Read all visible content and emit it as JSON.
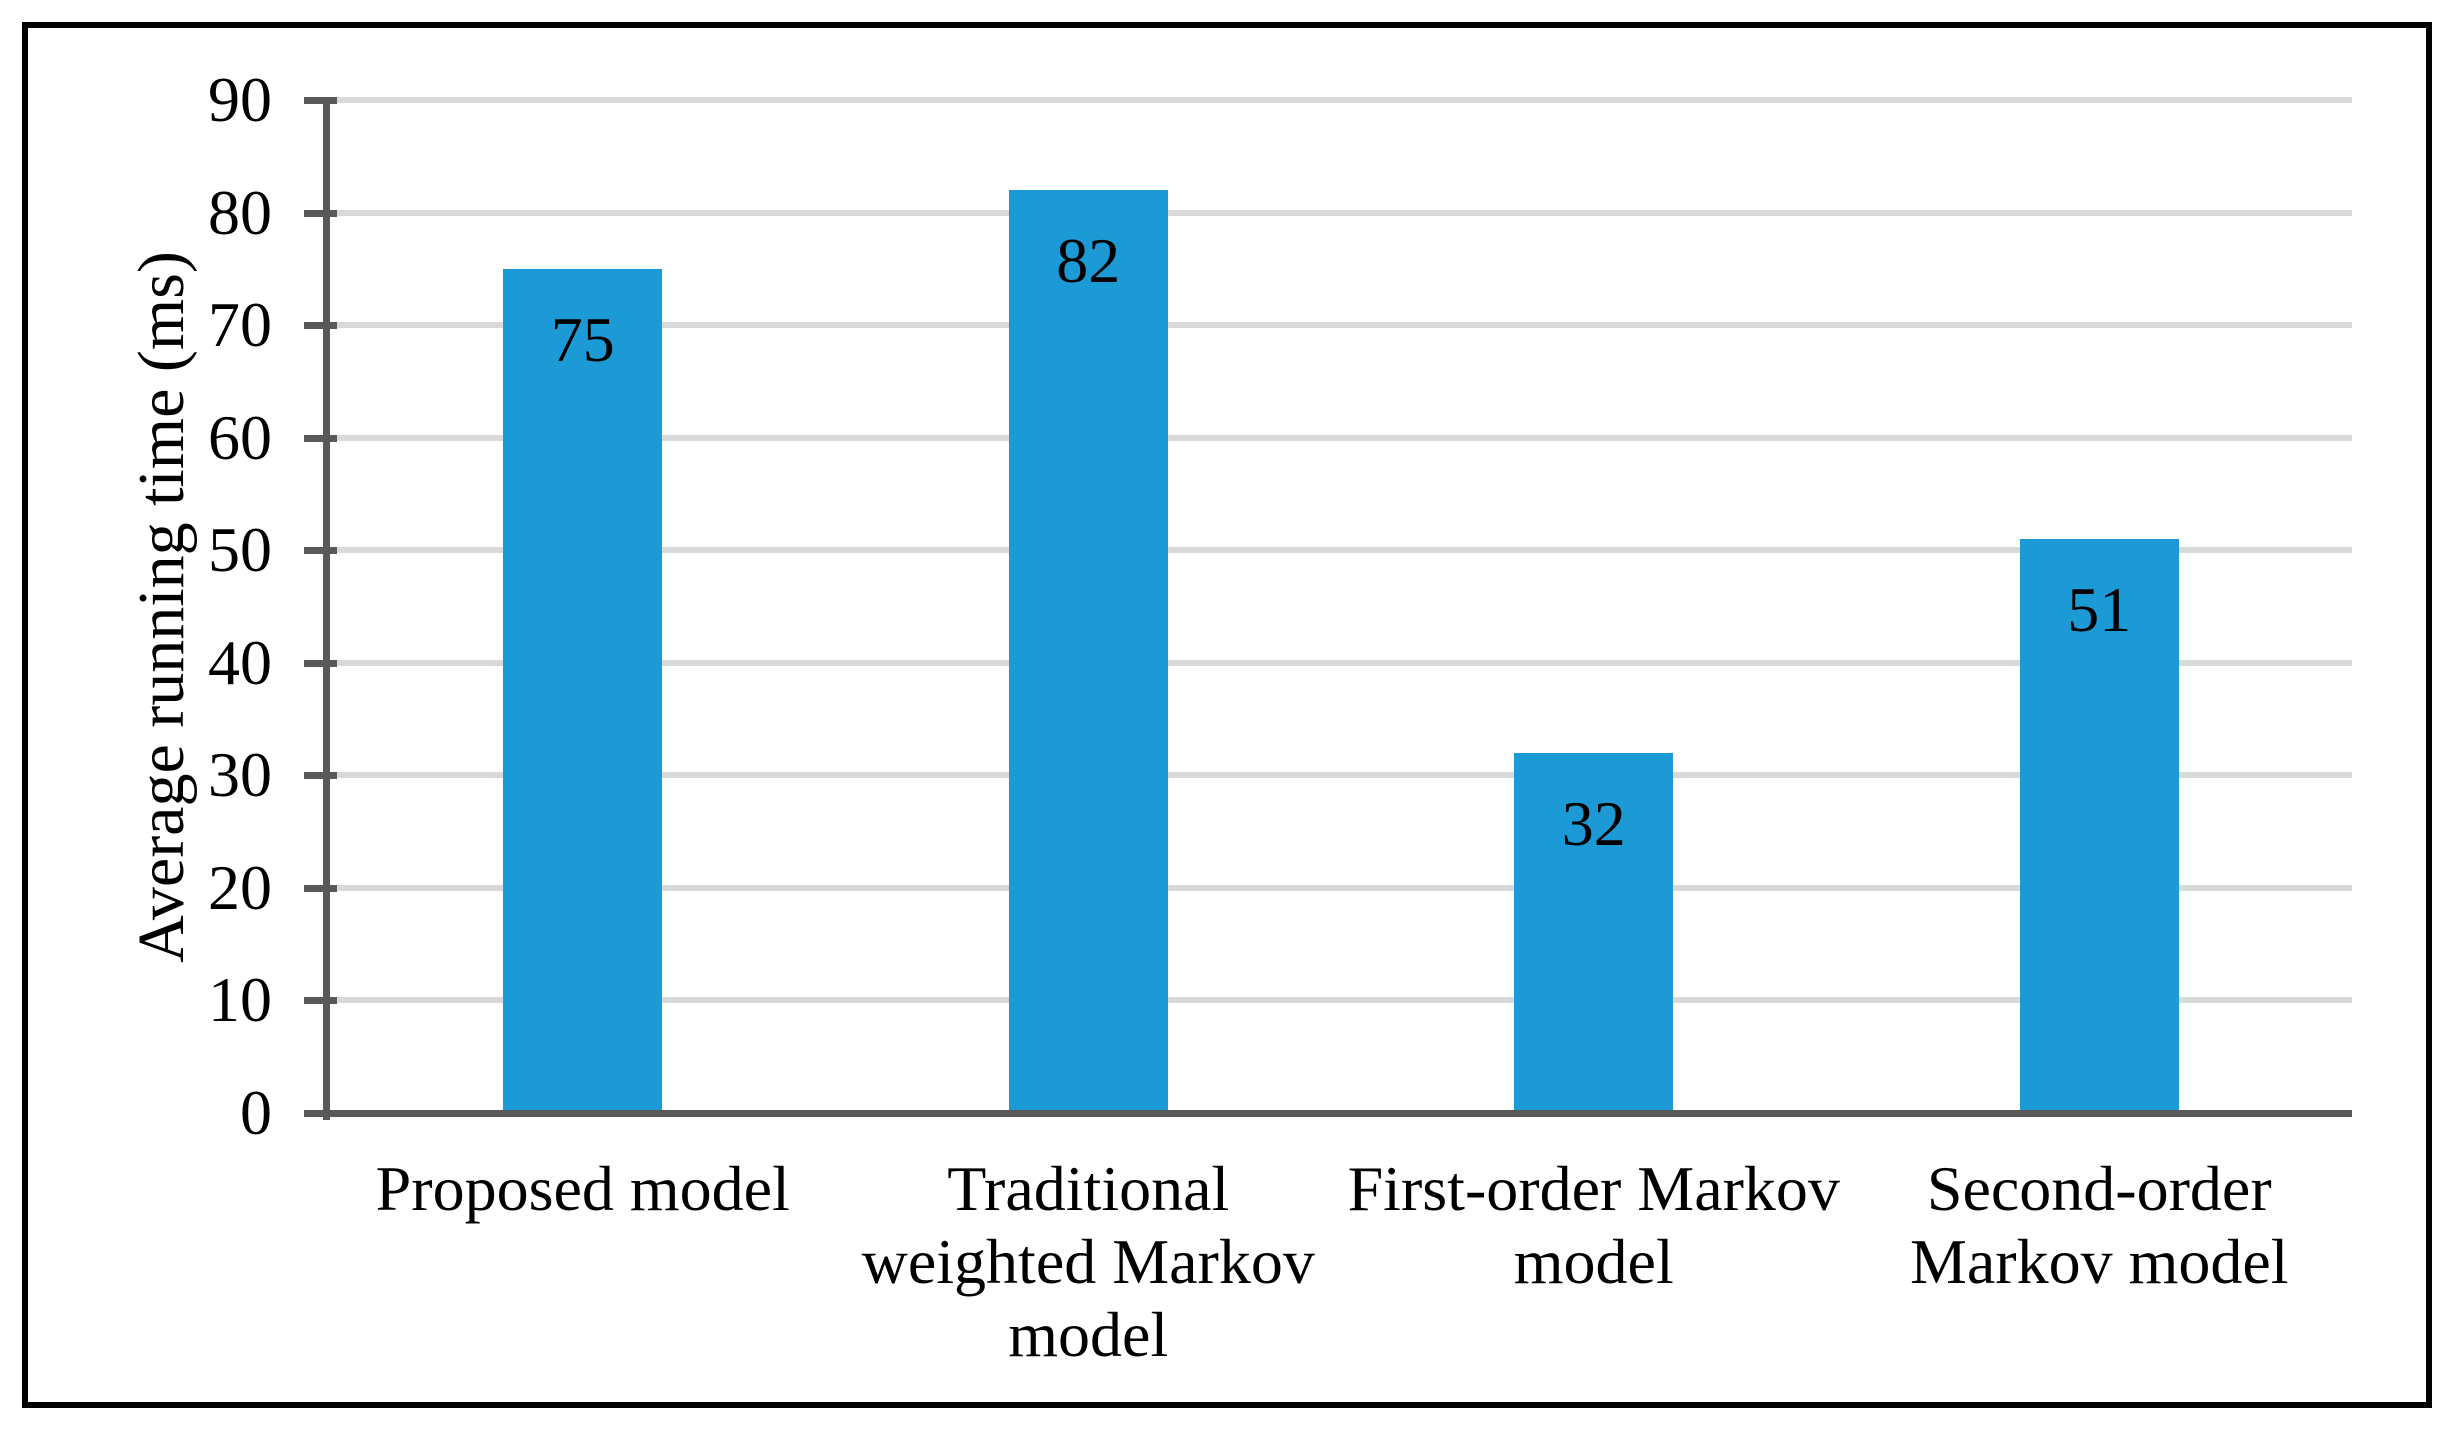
{
  "figure": {
    "background_color": "#ffffff",
    "border_color": "#000000"
  },
  "chart_data": {
    "type": "bar",
    "title": "",
    "xlabel": "",
    "ylabel": "Average running time (ms)",
    "ylim": [
      0,
      90
    ],
    "ytick_interval": 10,
    "yticks": [
      0,
      10,
      20,
      30,
      40,
      50,
      60,
      70,
      80,
      90
    ],
    "grid": "horizontal",
    "legend_position": "none",
    "categories": [
      "Proposed model",
      "Traditional weighted Markov model",
      "First-order Markov model",
      "Second-order Markov model"
    ],
    "categories_wrapped": [
      [
        "Proposed model"
      ],
      [
        "Traditional",
        "weighted Markov",
        "model"
      ],
      [
        "First-order Markov",
        "model"
      ],
      [
        "Second-order",
        "Markov model"
      ]
    ],
    "values": [
      75,
      82,
      32,
      51
    ],
    "data_labels": [
      "75",
      "82",
      "32",
      "51"
    ],
    "data_label_position": "inside-end",
    "bar_color": "#1c9ad6",
    "axis_color": "#595959",
    "gridline_color": "#d9d9d9",
    "label_color": "#000000"
  }
}
